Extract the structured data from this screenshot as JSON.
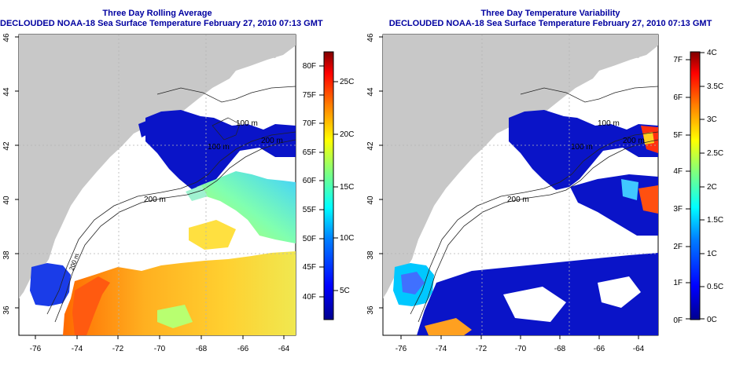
{
  "left_panel": {
    "title_line1": "Three Day Rolling Average",
    "title_line2": "DECLOUDED NOAA-18 Sea Surface Temperature February 27, 2010 07:13 GMT",
    "x_ticks": [
      "-76",
      "-74",
      "-72",
      "-70",
      "-68",
      "-66",
      "-64"
    ],
    "y_ticks": [
      "36",
      "38",
      "40",
      "42",
      "44",
      "46"
    ],
    "contour_labels": [
      "100 m",
      "100 m",
      "200 m",
      "200 m",
      "200 m"
    ],
    "colorbar": {
      "f_labels": [
        "80F",
        "75F",
        "70F",
        "65F",
        "60F",
        "55F",
        "50F",
        "45F",
        "40F"
      ],
      "c_labels": [
        "25C",
        "20C",
        "15C",
        "10C",
        "5C"
      ],
      "colors": [
        "#00008f",
        "#0000ff",
        "#007fff",
        "#00ffff",
        "#7fff7f",
        "#ffff00",
        "#ff7f00",
        "#ff0000",
        "#7f0000"
      ]
    }
  },
  "right_panel": {
    "title_line1": "Three Day Temperature Variability",
    "title_line2": "DECLOUDED NOAA-18 Sea Surface Temperature February 27, 2010 07:13 GMT",
    "x_ticks": [
      "-76",
      "-74",
      "-72",
      "-70",
      "-68",
      "-66",
      "-64"
    ],
    "y_ticks": [
      "36",
      "38",
      "40",
      "42",
      "44",
      "46"
    ],
    "contour_labels": [
      "100 m",
      "100 m",
      "200 m",
      "200 m"
    ],
    "colorbar": {
      "f_labels": [
        "7F",
        "6F",
        "5F",
        "4F",
        "3F",
        "2F",
        "1F",
        "0F"
      ],
      "c_labels": [
        "4C",
        "3.5C",
        "3C",
        "2.5C",
        "2C",
        "1.5C",
        "1C",
        "0.5C",
        "0C"
      ],
      "colors": [
        "#00008f",
        "#0000ff",
        "#007fff",
        "#00ffff",
        "#7fff7f",
        "#ffff00",
        "#ff7f00",
        "#ff0000",
        "#7f0000"
      ]
    }
  },
  "colors": {
    "land": "#c8c8c8",
    "cold_water": "#0a14c8",
    "title": "#0000a0"
  }
}
